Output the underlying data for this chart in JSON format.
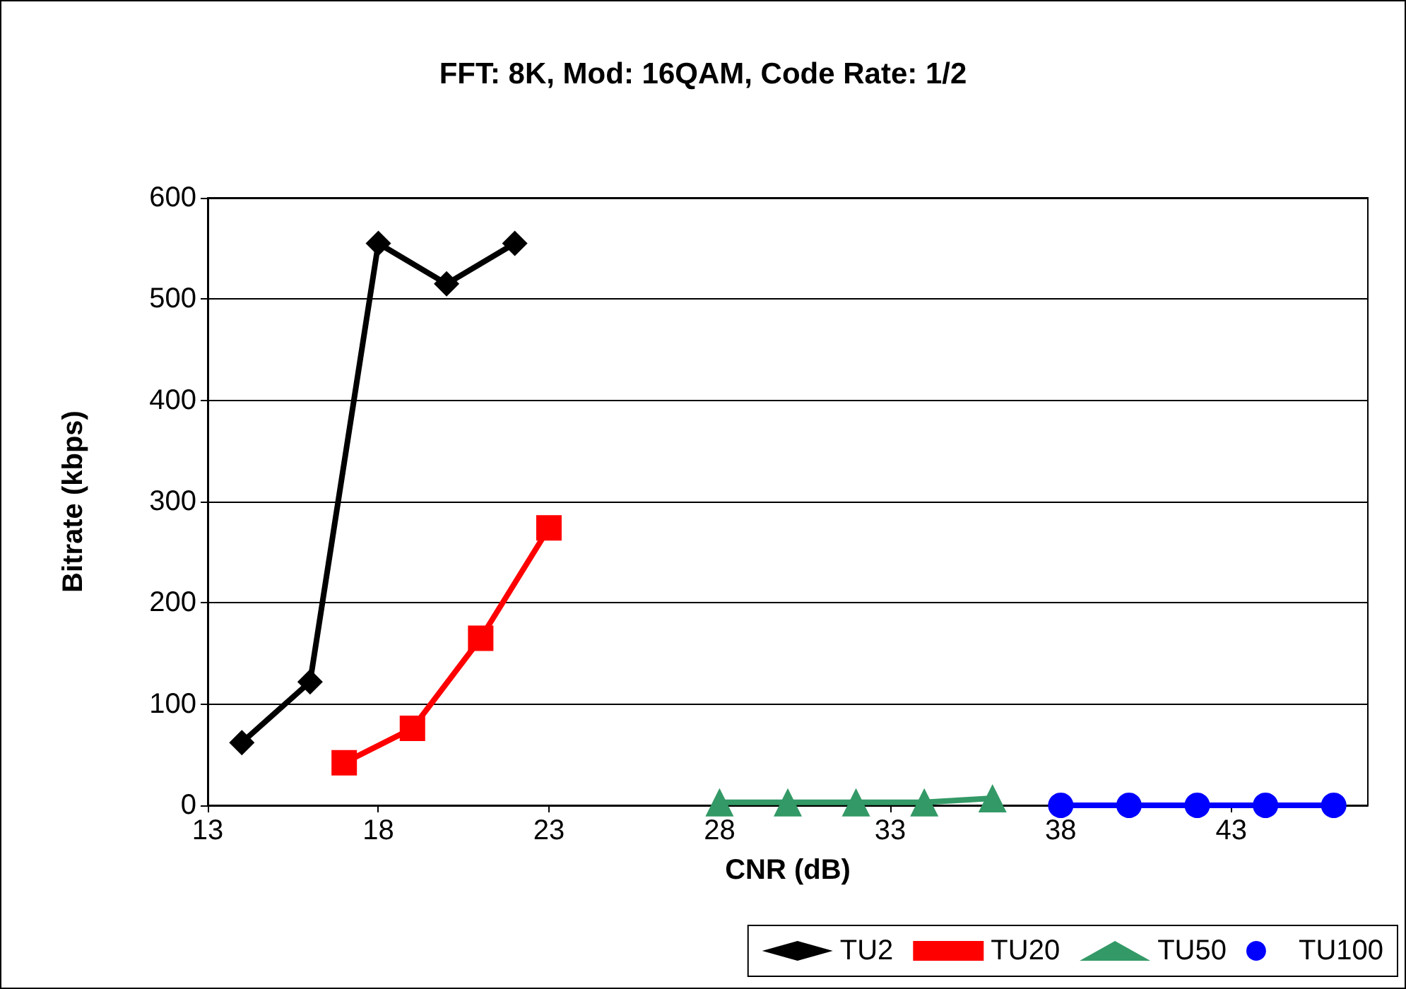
{
  "chart_data": {
    "type": "line",
    "title": "FFT: 8K, Mod: 16QAM, Code Rate: 1/2",
    "xlabel": "CNR (dB)",
    "ylabel": "Bitrate (kbps)",
    "xlim": [
      13,
      47
    ],
    "xticks": [
      13,
      18,
      23,
      28,
      33,
      38,
      43
    ],
    "ylim": [
      0,
      600
    ],
    "yticks": [
      0,
      100,
      200,
      300,
      400,
      500,
      600
    ],
    "grid": "y",
    "legend": "bottom right",
    "line_style": "solid",
    "series": [
      {
        "name": "TU2",
        "color": "#000000",
        "marker": "diamond",
        "x": [
          14,
          16,
          18,
          20,
          22
        ],
        "values": [
          62,
          122,
          555,
          515,
          555
        ]
      },
      {
        "name": "TU20",
        "color": "#ff0000",
        "marker": "square",
        "x": [
          17,
          19,
          21,
          23
        ],
        "values": [
          42,
          76,
          165,
          274
        ]
      },
      {
        "name": "TU50",
        "color": "#339966",
        "marker": "triangle",
        "x": [
          28,
          30,
          32,
          34,
          36
        ],
        "values": [
          3,
          3,
          3,
          3,
          7
        ]
      },
      {
        "name": "TU100",
        "color": "#0000ff",
        "marker": "circle",
        "x": [
          38,
          40,
          42,
          44,
          46
        ],
        "values": [
          0,
          0,
          0,
          0,
          0
        ]
      }
    ]
  }
}
